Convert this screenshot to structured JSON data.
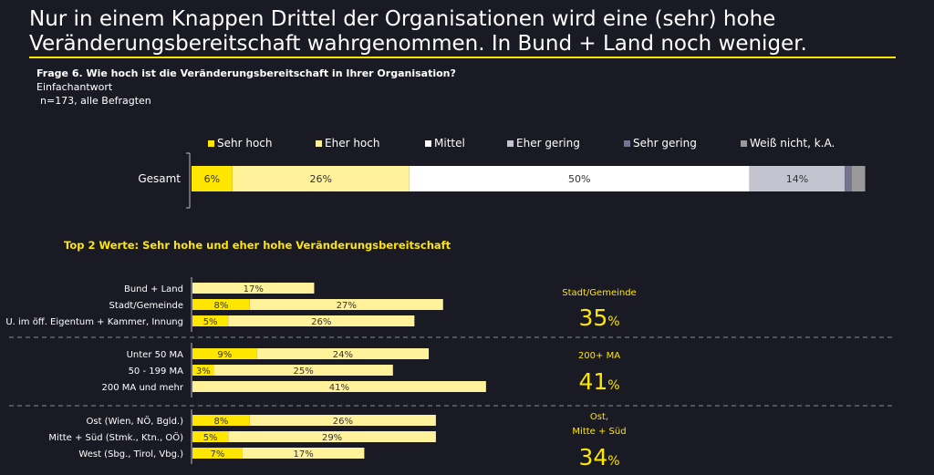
{
  "title": "Nur in einem Knappen Drittel der Organisationen wird eine (sehr) hohe Veränderungsbereitschaft wahrgenommen. In Bund + Land noch weniger.",
  "question": "Frage 6. Wie hoch ist die Veränderungsbereitschaft in Ihrer Organisation?",
  "question_type": "Einfachantwort",
  "sample": "n=173, alle Befragten",
  "subheading": "Top 2 Werte: Sehr hohe und eher hohe Veränderungsbereitschaft",
  "kpis": [
    {
      "label": "Stadt/Gemeinde",
      "value": "35",
      "unit": "%"
    },
    {
      "label": "200+ MA",
      "value": "41",
      "unit": "%"
    },
    {
      "label": "Ost,\nMitte + Süd",
      "value": "34",
      "unit": "%"
    }
  ],
  "chart_data": [
    {
      "type": "bar",
      "orientation": "horizontal",
      "stacked": true,
      "categories": [
        "Gesamt"
      ],
      "series": [
        {
          "name": "Sehr hoch",
          "color": "#ffe600",
          "values": [
            6
          ],
          "labels": [
            "6%"
          ]
        },
        {
          "name": "Eher hoch",
          "color": "#fff29a",
          "values": [
            26
          ],
          "labels": [
            "26%"
          ]
        },
        {
          "name": "Mittel",
          "color": "#ffffff",
          "values": [
            50
          ],
          "labels": [
            "50%"
          ]
        },
        {
          "name": "Eher gering",
          "color": "#c4c4d0",
          "values": [
            14
          ],
          "labels": [
            "14%"
          ]
        },
        {
          "name": "Sehr gering",
          "color": "#747490",
          "values": [
            1
          ],
          "labels": [
            ""
          ]
        },
        {
          "name": "Weiß nicht, k.A.",
          "color": "#999999",
          "values": [
            2
          ],
          "labels": [
            ""
          ]
        }
      ],
      "xlim": [
        0,
        100
      ],
      "legend": "top"
    },
    {
      "type": "bar",
      "orientation": "horizontal",
      "stacked": true,
      "categories": [
        "Bund + Land",
        "Stadt/Gemeinde",
        "U. im öff. Eigentum + Kammer, Innung",
        "Unter 50 MA",
        "50 - 199 MA",
        "200 MA und mehr",
        "Ost (Wien, NÖ, Bgld.)",
        "Mitte + Süd (Stmk., Ktn., OÖ)",
        "West (Sbg., Tirol, Vbg.)"
      ],
      "groups": [
        [
          0,
          1,
          2
        ],
        [
          3,
          4,
          5
        ],
        [
          6,
          7,
          8
        ]
      ],
      "series": [
        {
          "name": "Sehr hoch",
          "color": "#ffe600",
          "values": [
            0,
            8,
            5,
            9,
            3,
            0,
            8,
            5,
            7
          ],
          "labels": [
            "",
            "8%",
            "5%",
            "9%",
            "3%",
            "",
            "8%",
            "5%",
            "7%"
          ]
        },
        {
          "name": "Eher hoch",
          "color": "#fff29a",
          "values": [
            17,
            27,
            26,
            24,
            25,
            41,
            26,
            29,
            17
          ],
          "labels": [
            "17%",
            "27%",
            "26%",
            "24%",
            "25%",
            "41%",
            "26%",
            "29%",
            "17%"
          ]
        }
      ],
      "xlim": [
        0,
        100
      ]
    }
  ]
}
